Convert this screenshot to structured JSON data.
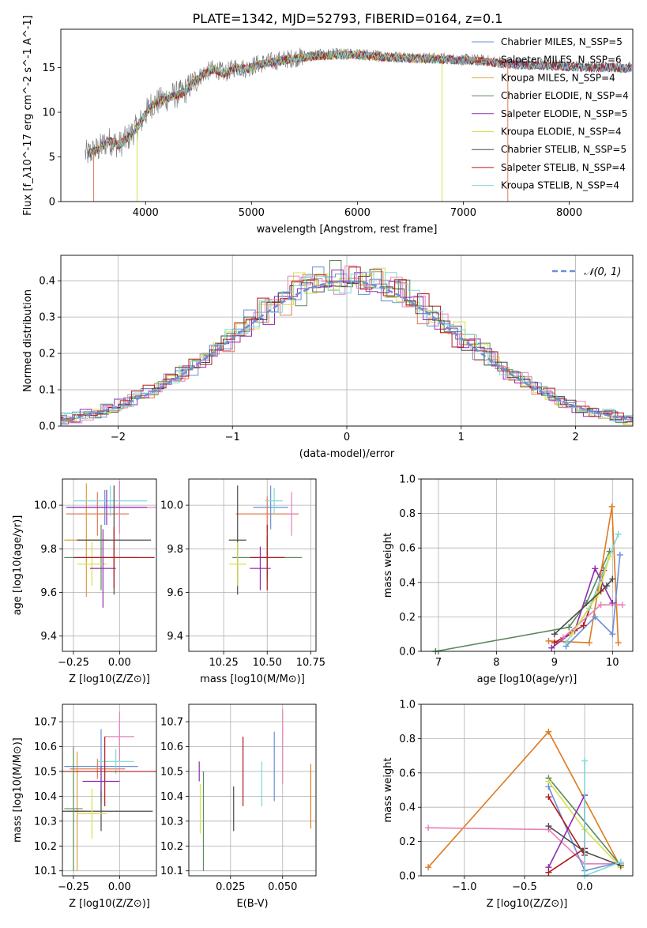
{
  "figure_title": "PLATE=1342, MJD=52793, FIBERID=0164, z=0.1",
  "colors": {
    "chabrier_miles": "#6a8fd8",
    "salpeter_miles": "#e07b54",
    "kroupa_miles": "#d8a23a",
    "chabrier_elodie": "#5a8a5a",
    "salpeter_elodie": "#8e2bb0",
    "kroupa_elodie": "#d8e04a",
    "chabrier_stelib": "#4a4a4a",
    "salpeter_stelib": "#b01a1a",
    "kroupa_stelib": "#7fd8d8",
    "pink": "#e880b8",
    "orange": "#e07a20",
    "spectrum_grey": "#808080"
  },
  "chart_data": [
    {
      "id": "spectrum",
      "type": "line",
      "title": "PLATE=1342, MJD=52793, FIBERID=0164, z=0.1",
      "xlabel": "wavelength [Angstrom, rest frame]",
      "ylabel": "Flux [f_λ10^-17 erg cm^-2 s^-1 A^-1]",
      "xlim": [
        3200,
        8600
      ],
      "ylim": [
        0,
        19.3
      ],
      "xticks": [
        4000,
        5000,
        6000,
        7000,
        8000
      ],
      "yticks": [
        0,
        5,
        10,
        15
      ],
      "grid": false,
      "legend_position": "right",
      "x": [
        3450,
        3550,
        3650,
        3750,
        3850,
        3950,
        4050,
        4150,
        4250,
        4350,
        4450,
        4550,
        4650,
        4750,
        4850,
        4950,
        5050,
        5200,
        5400,
        5600,
        5800,
        6000,
        6200,
        6400,
        6600,
        6800,
        7000,
        7200,
        7400,
        7600,
        7800,
        8000,
        8200,
        8400,
        8600
      ],
      "y_data": [
        5.5,
        6.0,
        7.0,
        6.5,
        7.5,
        9.0,
        11.0,
        11.5,
        12.0,
        12.3,
        13.5,
        14.5,
        15.0,
        14.5,
        15.2,
        15.0,
        15.5,
        15.8,
        16.2,
        16.5,
        16.6,
        16.6,
        16.4,
        16.3,
        16.2,
        16.1,
        16.0,
        15.9,
        15.6,
        15.5,
        15.4,
        15.3,
        15.2,
        15.2,
        15.1
      ],
      "series": [
        {
          "name": "Chabrier MILES, N_SSP=5",
          "color_key": "chabrier_miles"
        },
        {
          "name": "Salpeter MILES, N_SSP=6",
          "color_key": "salpeter_miles"
        },
        {
          "name": "Kroupa MILES, N_SSP=4",
          "color_key": "kroupa_miles"
        },
        {
          "name": "Chabrier ELODIE, N_SSP=4",
          "color_key": "chabrier_elodie"
        },
        {
          "name": "Salpeter ELODIE, N_SSP=5",
          "color_key": "salpeter_elodie"
        },
        {
          "name": "Kroupa ELODIE, N_SSP=4",
          "color_key": "kroupa_elodie"
        },
        {
          "name": "Chabrier STELIB, N_SSP=5",
          "color_key": "chabrier_stelib"
        },
        {
          "name": "Salpeter STELIB, N_SSP=4",
          "color_key": "salpeter_stelib"
        },
        {
          "name": "Kroupa STELIB, N_SSP=4",
          "color_key": "kroupa_stelib"
        }
      ]
    },
    {
      "id": "residuals",
      "type": "line",
      "xlabel": "(data-model)/error",
      "ylabel": "Normed distribution",
      "xlim": [
        -2.5,
        2.5
      ],
      "ylim": [
        0,
        0.47
      ],
      "xticks": [
        -2,
        -1,
        0,
        1,
        2
      ],
      "yticks": [
        0.0,
        0.1,
        0.2,
        0.3,
        0.4
      ],
      "grid": true,
      "legend_position": "top-right",
      "reference_curve": {
        "name": "𝒩(0, 1)",
        "mean": 0,
        "sigma": 1,
        "style": "dashed"
      },
      "histogram_bin_width": 0.1
    },
    {
      "id": "age_vs_Z",
      "type": "scatter",
      "xlabel": "Z [log10(Z/Z⊙)]",
      "ylabel": "age  [log10(age/yr)]",
      "xlim": [
        -0.31,
        0.2
      ],
      "ylim": [
        9.33,
        10.12
      ],
      "xticks": [
        -0.25,
        0.0
      ],
      "yticks": [
        9.4,
        9.6,
        9.8,
        10.0
      ],
      "grid": true,
      "points": [
        {
          "x": -0.08,
          "y": 9.99,
          "xerr": 0.2,
          "yerr": 0.08,
          "color_key": "chabrier_miles"
        },
        {
          "x": -0.12,
          "y": 9.96,
          "xerr": 0.17,
          "yerr": 0.1,
          "color_key": "salpeter_miles"
        },
        {
          "x": -0.18,
          "y": 9.84,
          "xerr": 0.12,
          "yerr": 0.26,
          "color_key": "kroupa_miles"
        },
        {
          "x": 0.0,
          "y": 9.99,
          "xerr": 0.2,
          "yerr": 0.12,
          "color_key": "pink"
        },
        {
          "x": -0.05,
          "y": 10.02,
          "xerr": 0.2,
          "yerr": 0.07,
          "color_key": "kroupa_stelib"
        },
        {
          "x": -0.07,
          "y": 9.99,
          "xerr": 0.22,
          "yerr": 0.08,
          "color_key": "salpeter_elodie"
        },
        {
          "x": -0.03,
          "y": 9.84,
          "xerr": 0.2,
          "yerr": 0.25,
          "color_key": "chabrier_stelib"
        },
        {
          "x": -0.1,
          "y": 9.76,
          "xerr": 0.2,
          "yerr": 0.15,
          "color_key": "chabrier_elodie"
        },
        {
          "x": -0.15,
          "y": 9.73,
          "xerr": 0.08,
          "yerr": 0.1,
          "color_key": "kroupa_elodie"
        },
        {
          "x": -0.09,
          "y": 9.71,
          "xerr": 0.07,
          "yerr": 0.18,
          "color_key": "salpeter_elodie"
        },
        {
          "x": -0.03,
          "y": 9.76,
          "xerr": 0.22,
          "yerr": 0.14,
          "color_key": "salpeter_stelib"
        }
      ]
    },
    {
      "id": "age_vs_mass",
      "type": "scatter",
      "xlabel": "mass [log10(M/M⊙)]",
      "ylabel": "",
      "xlim": [
        10.05,
        10.78
      ],
      "ylim": [
        9.33,
        10.12
      ],
      "xticks": [
        10.25,
        10.5,
        10.75
      ],
      "yticks": [
        9.4,
        9.6,
        9.8,
        10.0
      ],
      "grid": true,
      "points": [
        {
          "x": 10.52,
          "y": 9.99,
          "xerr": 0.1,
          "yerr": 0.1,
          "color_key": "chabrier_miles"
        },
        {
          "x": 10.5,
          "y": 9.96,
          "xerr": 0.18,
          "yerr": 0.08,
          "color_key": "salpeter_miles"
        },
        {
          "x": 10.33,
          "y": 9.84,
          "xerr": 0.05,
          "yerr": 0.25,
          "color_key": "chabrier_stelib"
        },
        {
          "x": 10.64,
          "y": 9.96,
          "xerr": 0.02,
          "yerr": 0.1,
          "color_key": "pink"
        },
        {
          "x": 10.54,
          "y": 10.02,
          "xerr": 0.05,
          "yerr": 0.06,
          "color_key": "kroupa_stelib"
        },
        {
          "x": 10.5,
          "y": 9.76,
          "xerr": 0.2,
          "yerr": 0.1,
          "color_key": "chabrier_elodie"
        },
        {
          "x": 10.33,
          "y": 9.73,
          "xerr": 0.05,
          "yerr": 0.1,
          "color_key": "kroupa_elodie"
        },
        {
          "x": 10.46,
          "y": 9.71,
          "xerr": 0.06,
          "yerr": 0.1,
          "color_key": "salpeter_elodie"
        },
        {
          "x": 10.5,
          "y": 9.76,
          "xerr": 0.1,
          "yerr": 0.15,
          "color_key": "salpeter_stelib"
        }
      ]
    },
    {
      "id": "weight_vs_age",
      "type": "line",
      "xlabel": "age  [log10(age/yr)]",
      "ylabel": "mass weight",
      "xlim": [
        6.7,
        10.35
      ],
      "ylim": [
        0,
        1.0
      ],
      "xticks": [
        7,
        8,
        9,
        10
      ],
      "yticks": [
        0.0,
        0.2,
        0.4,
        0.6,
        0.8,
        1.0
      ],
      "grid": true,
      "series": [
        {
          "color_key": "chabrier_elodie",
          "points": [
            [
              6.95,
              0.0
            ],
            [
              9.25,
              0.14
            ],
            [
              9.55,
              0.28
            ],
            [
              9.95,
              0.58
            ]
          ]
        },
        {
          "color_key": "orange",
          "points": [
            [
              8.9,
              0.06
            ],
            [
              9.6,
              0.05
            ],
            [
              9.99,
              0.84
            ],
            [
              10.1,
              0.05
            ]
          ]
        },
        {
          "color_key": "chabrier_miles",
          "points": [
            [
              9.2,
              0.03
            ],
            [
              9.7,
              0.2
            ],
            [
              10.0,
              0.1
            ],
            [
              10.13,
              0.56
            ]
          ]
        },
        {
          "color_key": "salpeter_elodie",
          "points": [
            [
              8.95,
              0.02
            ],
            [
              9.35,
              0.12
            ],
            [
              9.7,
              0.48
            ],
            [
              10.0,
              0.28
            ]
          ]
        },
        {
          "color_key": "salpeter_stelib",
          "points": [
            [
              9.0,
              0.05
            ],
            [
              9.5,
              0.15
            ],
            [
              9.85,
              0.47
            ],
            [
              9.8,
              0.35
            ]
          ]
        },
        {
          "color_key": "kroupa_stelib",
          "points": [
            [
              9.2,
              0.05
            ],
            [
              9.6,
              0.25
            ],
            [
              10.1,
              0.68
            ]
          ]
        },
        {
          "color_key": "pink",
          "points": [
            [
              9.15,
              0.08
            ],
            [
              9.8,
              0.27
            ],
            [
              10.17,
              0.27
            ]
          ]
        },
        {
          "color_key": "kroupa_elodie",
          "points": [
            [
              9.3,
              0.1
            ],
            [
              9.75,
              0.33
            ],
            [
              9.95,
              0.55
            ]
          ]
        },
        {
          "color_key": "chabrier_stelib",
          "points": [
            [
              9.0,
              0.1
            ],
            [
              9.9,
              0.38
            ],
            [
              10.0,
              0.42
            ]
          ]
        }
      ]
    },
    {
      "id": "mass_vs_Z",
      "type": "scatter",
      "xlabel": "Z [log10(Z/Z⊙)]",
      "ylabel": "mass [log10(M/M⊙)]",
      "xlim": [
        -0.31,
        0.2
      ],
      "ylim": [
        10.08,
        10.77
      ],
      "xticks": [
        -0.25,
        0.0
      ],
      "yticks": [
        10.1,
        10.2,
        10.3,
        10.4,
        10.5,
        10.6,
        10.7
      ],
      "grid": true,
      "points": [
        {
          "x": -0.1,
          "y": 10.52,
          "xerr": 0.2,
          "yerr": 0.15,
          "color_key": "chabrier_miles"
        },
        {
          "x": -0.12,
          "y": 10.51,
          "xerr": 0.15,
          "yerr": 0.04,
          "color_key": "salpeter_miles"
        },
        {
          "x": -0.23,
          "y": 10.34,
          "xerr": 0.05,
          "yerr": 0.24,
          "color_key": "kroupa_miles"
        },
        {
          "x": 0.0,
          "y": 10.64,
          "xerr": 0.08,
          "yerr": 0.1,
          "color_key": "pink"
        },
        {
          "x": -0.02,
          "y": 10.54,
          "xerr": 0.1,
          "yerr": 0.05,
          "color_key": "kroupa_stelib"
        },
        {
          "x": -0.08,
          "y": 10.5,
          "xerr": 0.28,
          "yerr": 0.14,
          "color_key": "salpeter_stelib"
        },
        {
          "x": -0.1,
          "y": 10.46,
          "xerr": 0.1,
          "yerr": 0.06,
          "color_key": "salpeter_elodie"
        },
        {
          "x": -0.1,
          "y": 10.34,
          "xerr": 0.28,
          "yerr": 0.08,
          "color_key": "chabrier_stelib"
        },
        {
          "x": -0.15,
          "y": 10.33,
          "xerr": 0.08,
          "yerr": 0.1,
          "color_key": "kroupa_elodie"
        },
        {
          "x": -0.25,
          "y": 10.35,
          "xerr": 0.05,
          "yerr": 0.25,
          "color_key": "chabrier_elodie"
        }
      ]
    },
    {
      "id": "mass_vs_EBV",
      "type": "scatter",
      "xlabel": "E(B-V)",
      "ylabel": "",
      "xlim": [
        0.005,
        0.066
      ],
      "ylim": [
        10.08,
        10.77
      ],
      "xticks": [
        0.0,
        0.025,
        0.05
      ],
      "yticks": [
        10.1,
        10.2,
        10.3,
        10.4,
        10.5,
        10.6,
        10.7
      ],
      "grid": true,
      "points": [
        {
          "x": 0.01,
          "y": 10.5,
          "yerr": 0.04,
          "color_key": "salpeter_elodie"
        },
        {
          "x": 0.0105,
          "y": 10.35,
          "yerr": 0.1,
          "color_key": "kroupa_elodie"
        },
        {
          "x": 0.012,
          "y": 10.3,
          "yerr": 0.2,
          "color_key": "chabrier_elodie"
        },
        {
          "x": 0.0265,
          "y": 10.35,
          "yerr": 0.09,
          "color_key": "chabrier_stelib"
        },
        {
          "x": 0.031,
          "y": 10.5,
          "yerr": 0.14,
          "color_key": "salpeter_stelib"
        },
        {
          "x": 0.04,
          "y": 10.45,
          "yerr": 0.09,
          "color_key": "kroupa_stelib"
        },
        {
          "x": 0.046,
          "y": 10.52,
          "yerr": 0.14,
          "color_key": "chabrier_miles"
        },
        {
          "x": 0.05,
          "y": 10.6,
          "yerr": 0.15,
          "color_key": "pink"
        },
        {
          "x": 0.0635,
          "y": 10.4,
          "yerr": 0.13,
          "color_key": "orange"
        }
      ]
    },
    {
      "id": "weight_vs_Z",
      "type": "line",
      "xlabel": "Z [log10(Z/Z⊙)]",
      "ylabel": "mass weight",
      "xlim": [
        -1.36,
        0.4
      ],
      "ylim": [
        0,
        1.0
      ],
      "xticks": [
        -1.0,
        -0.5,
        0.0
      ],
      "yticks": [
        0.0,
        0.2,
        0.4,
        0.6,
        0.8,
        1.0
      ],
      "grid": true,
      "series": [
        {
          "color_key": "orange",
          "points": [
            [
              -1.3,
              0.05
            ],
            [
              -0.3,
              0.84
            ],
            [
              0.3,
              0.05
            ]
          ]
        },
        {
          "color_key": "pink",
          "points": [
            [
              -1.3,
              0.28
            ],
            [
              -0.3,
              0.27
            ],
            [
              0.0,
              0.07
            ],
            [
              0.3,
              0.07
            ]
          ]
        },
        {
          "color_key": "chabrier_elodie",
          "points": [
            [
              -0.3,
              0.57
            ],
            [
              0.3,
              0.06
            ]
          ]
        },
        {
          "color_key": "kroupa_elodie",
          "points": [
            [
              -0.3,
              0.55
            ],
            [
              0.0,
              0.27
            ],
            [
              0.3,
              0.05
            ]
          ]
        },
        {
          "color_key": "chabrier_miles",
          "points": [
            [
              -0.3,
              0.52
            ],
            [
              0.0,
              0.03
            ],
            [
              0.3,
              0.08
            ]
          ]
        },
        {
          "color_key": "salpeter_elodie",
          "points": [
            [
              -0.3,
              0.05
            ],
            [
              0.0,
              0.47
            ],
            [
              0.0,
              0.14
            ]
          ]
        },
        {
          "color_key": "salpeter_stelib",
          "points": [
            [
              -0.3,
              0.02
            ],
            [
              0.0,
              0.16
            ],
            [
              0.0,
              0.12
            ],
            [
              -0.3,
              0.46
            ]
          ]
        },
        {
          "color_key": "chabrier_stelib",
          "points": [
            [
              -0.3,
              0.29
            ],
            [
              0.0,
              0.14
            ],
            [
              0.3,
              0.06
            ]
          ]
        },
        {
          "color_key": "kroupa_stelib",
          "points": [
            [
              0.0,
              0.67
            ],
            [
              0.0,
              0.0
            ],
            [
              0.3,
              0.08
            ]
          ]
        }
      ]
    }
  ]
}
